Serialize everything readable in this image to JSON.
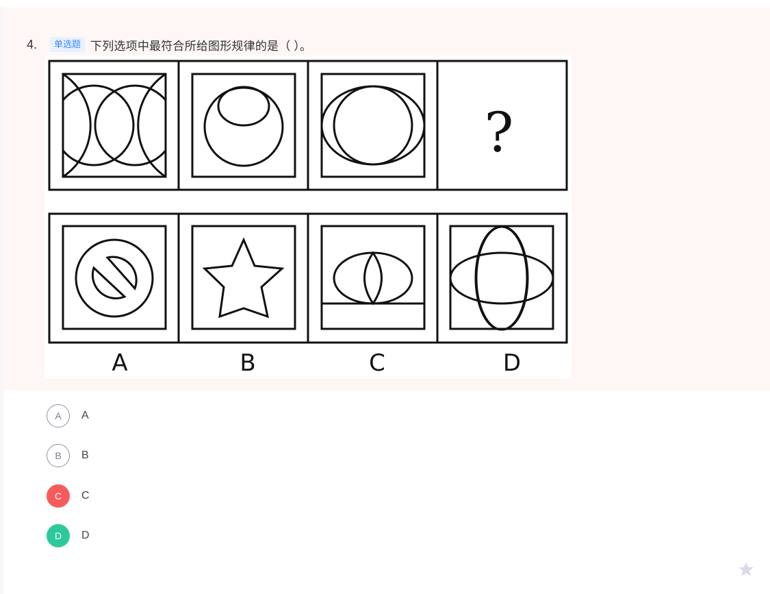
{
  "question": {
    "number": "4.",
    "type_tag": "单选题",
    "text": "下列选项中最符合所给图形规律的是（ ）。"
  },
  "figure": {
    "question_mark": "?",
    "option_letters": [
      "A",
      "B",
      "C",
      "D"
    ]
  },
  "options": [
    {
      "letter": "A",
      "label": "A",
      "state": "default"
    },
    {
      "letter": "B",
      "label": "B",
      "state": "default"
    },
    {
      "letter": "C",
      "label": "C",
      "state": "wrong"
    },
    {
      "letter": "D",
      "label": "D",
      "state": "correct"
    }
  ],
  "colors": {
    "card_bg": "#fff6f6",
    "tag_text": "#3b8cff",
    "tag_bg": "#e8f1ff",
    "wrong": "#f65b5b",
    "correct": "#2ec99b",
    "star": "#d9dbe6"
  },
  "icons": {
    "favorite": "star-icon"
  }
}
